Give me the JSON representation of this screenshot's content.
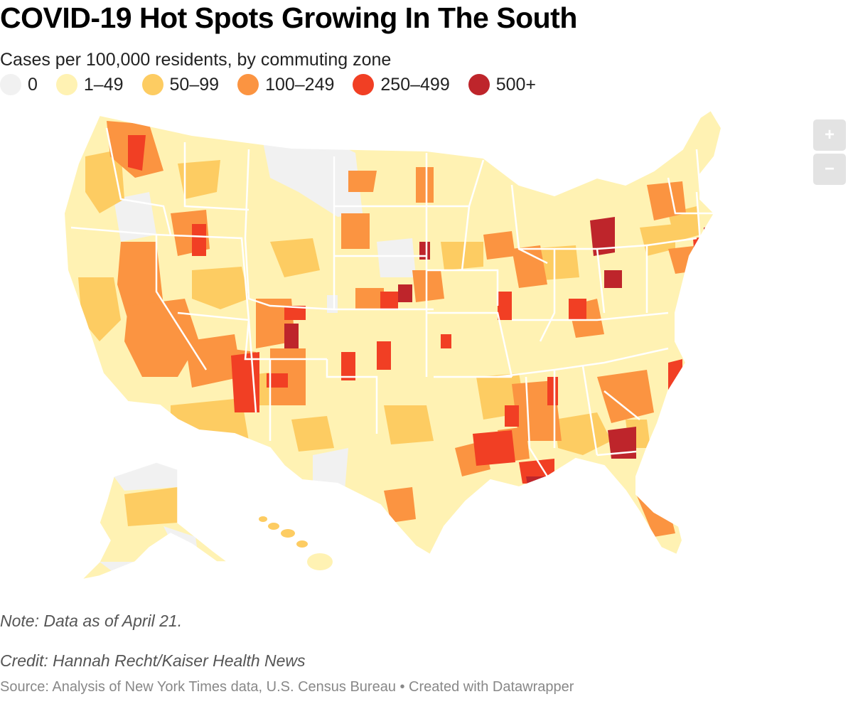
{
  "title": "COVID-19 Hot Spots Growing In The South",
  "subtitle": "Cases per 100,000 residents, by commuting zone",
  "legend": [
    {
      "label": "0",
      "color": "#f1f1f1"
    },
    {
      "label": "1–49",
      "color": "#fff2b3"
    },
    {
      "label": "50–99",
      "color": "#fdcc62"
    },
    {
      "label": "100–249",
      "color": "#fb9441"
    },
    {
      "label": "250–499",
      "color": "#f13f24"
    },
    {
      "label": "500+",
      "color": "#be252b"
    }
  ],
  "zoom": {
    "in_label": "+",
    "out_label": "−"
  },
  "note": "Note: Data as of April 21.",
  "credit": "Credit: Hannah Recht/Kaiser Health News",
  "source": "Source: Analysis of New York Times data, U.S. Census Bureau • Created with Datawrapper"
}
